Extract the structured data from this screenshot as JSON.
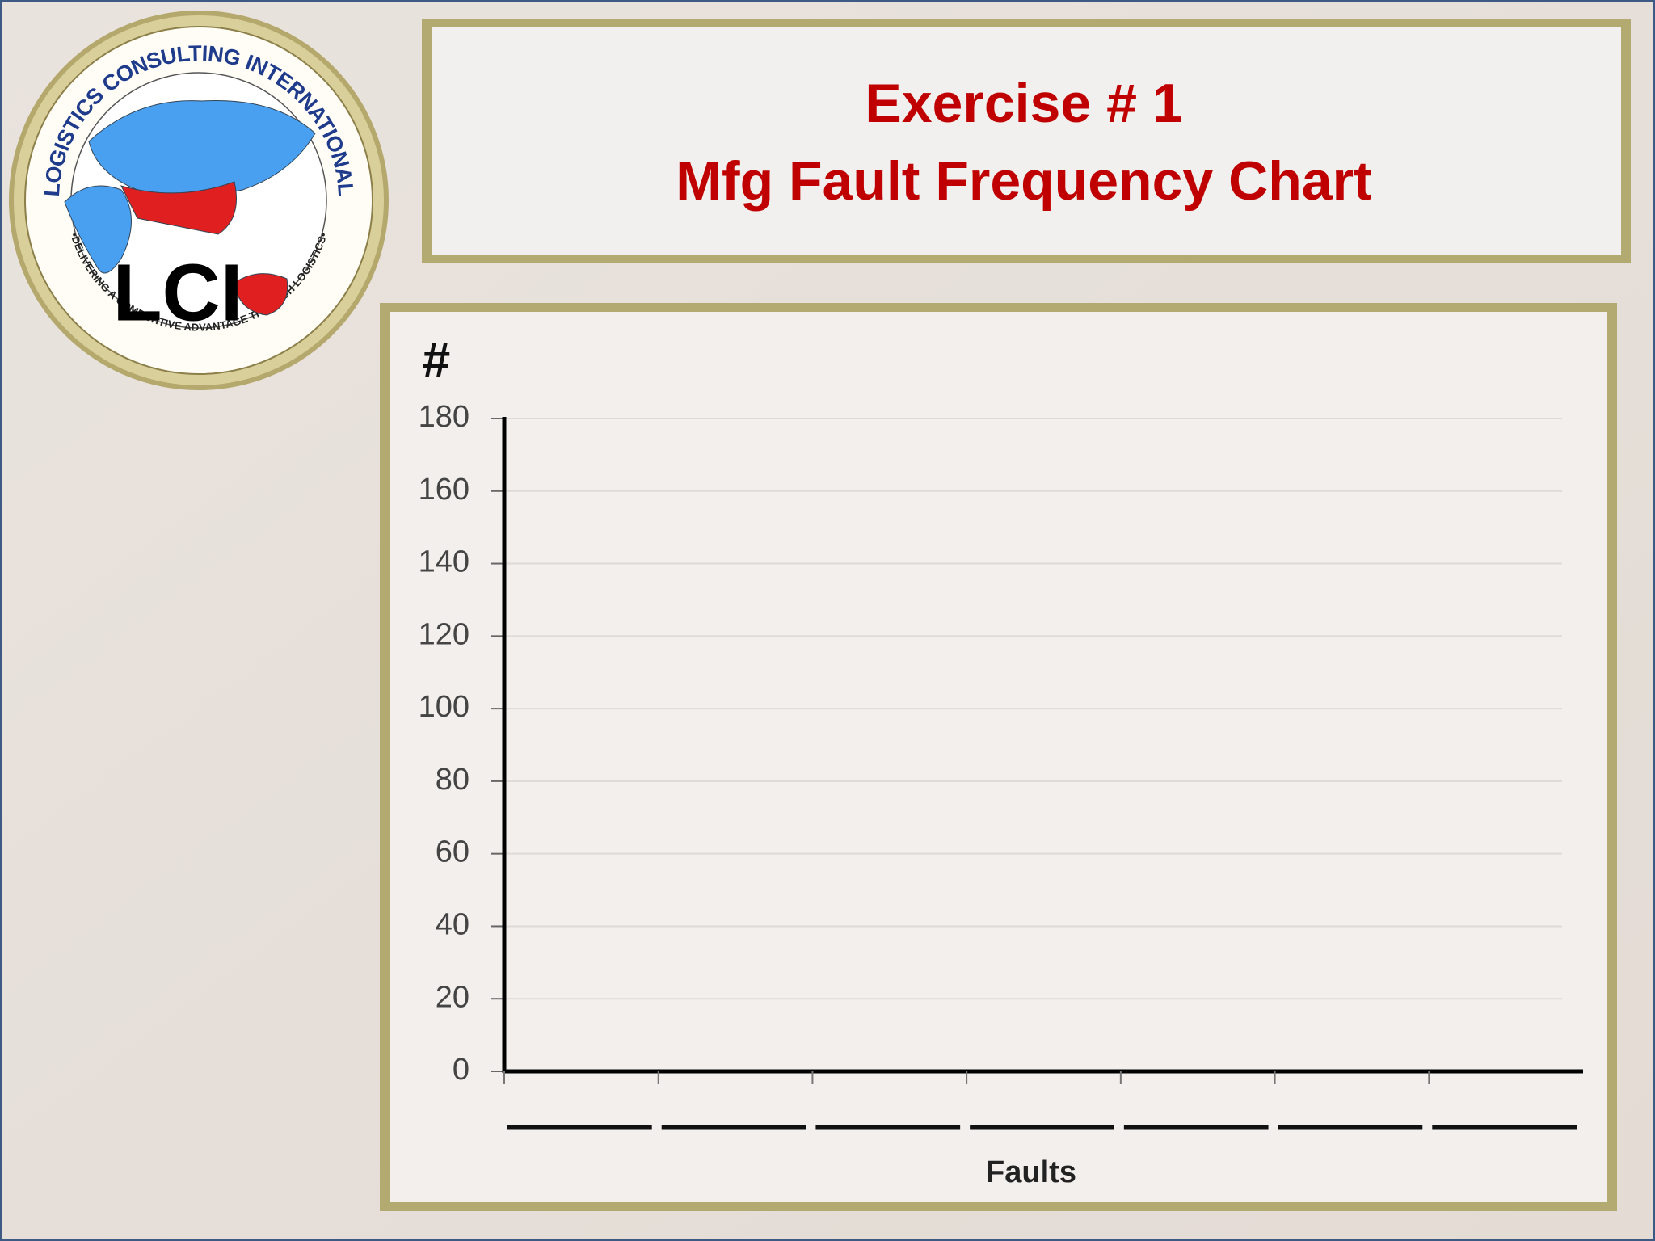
{
  "logo": {
    "ring_top": "LOGISTICS CONSULTING INTERNATIONAL",
    "ring_bottom": "•DELIVERING A COMPETITIVE ADVANTAGE THROUGH LOGISTICS•",
    "mark": "LCI"
  },
  "chart_data": {
    "type": "bar",
    "title": [
      "Exercise # 1",
      "Mfg Fault Frequency Chart"
    ],
    "y_label": "#",
    "x_label": "Faults",
    "categories": [
      null,
      null,
      null,
      null,
      null,
      null,
      null
    ],
    "ylim": [
      0,
      180
    ],
    "yticks": [
      0,
      20,
      40,
      60,
      80,
      100,
      120,
      140,
      160,
      180
    ],
    "grid": true
  }
}
